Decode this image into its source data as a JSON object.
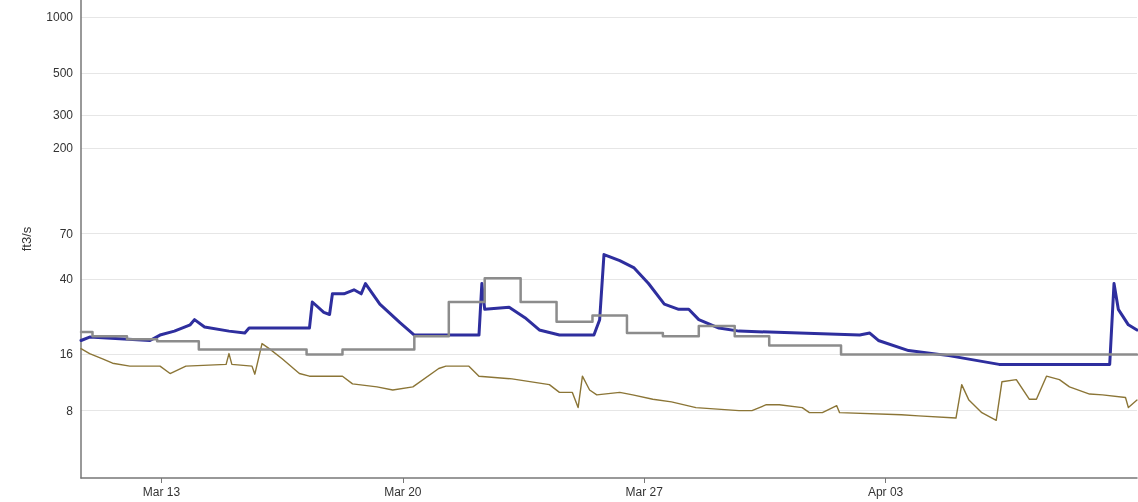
{
  "chart_data": {
    "type": "line",
    "ylabel": "ft3/s",
    "log": "y",
    "grid": "y",
    "marker": "none",
    "line_style": "solid",
    "xlim": [
      "--03-10T16:00",
      "--04-10T07:00"
    ],
    "xticks": [
      {
        "value": "--03-13",
        "label": "Mar 13"
      },
      {
        "value": "--03-20",
        "label": "Mar 20"
      },
      {
        "value": "--03-27",
        "label": "Mar 27"
      },
      {
        "value": "--04-03",
        "label": "Apr 03"
      }
    ],
    "ylim": [
      3.5,
      1230
    ],
    "yticks": [
      8,
      16,
      40,
      70,
      200,
      300,
      500,
      1000
    ],
    "series": [
      {
        "type": "step",
        "color": "#8c8c8c",
        "x": [
          "--03-10T16:00",
          "--03-11T00:00",
          "--03-12T00:00",
          "--03-12T21:00",
          "--03-14T02:00",
          "--03-17T05:00",
          "--03-18T06:00",
          "--03-20T08:00",
          "--03-21T08:00",
          "--03-22T09:00",
          "--03-23T10:00",
          "--03-24T11:00",
          "--03-25T12:00",
          "--03-26T12:00",
          "--03-27T13:00",
          "--03-28T14:00",
          "--03-29T15:00",
          "--03-30T15:00",
          "--04-01T17:00",
          "--04-10T07:00"
        ],
        "values": [
          21.0,
          19.9,
          19.2,
          18.7,
          16.9,
          15.9,
          16.9,
          19.9,
          30.3,
          40.5,
          30.3,
          23.8,
          25.7,
          20.7,
          19.9,
          22.6,
          19.9,
          17.8,
          15.9,
          15.9
        ]
      },
      {
        "color": "#8b7536",
        "x": [
          "--03-10T16:00",
          "--03-10T22:00",
          "--03-11T07:00",
          "--03-11T14:00",
          "--03-12T02:00",
          "--03-12T23:00",
          "--03-13T06:00",
          "--03-13T17:00",
          "--03-14T21:00",
          "--03-14T23:00",
          "--03-15T01:00",
          "--03-15T15:00",
          "--03-15T17:00",
          "--03-15T22:00",
          "--03-16T03:00",
          "--03-16T12:00",
          "--03-17T00:00",
          "--03-17T07:00",
          "--03-18T06:00",
          "--03-18T13:00",
          "--03-19T06:00",
          "--03-19T17:00",
          "--03-20T07:00",
          "--03-21T01:00",
          "--03-21T06:00",
          "--03-21T22:00",
          "--03-22T05:00",
          "--03-23T04:00",
          "--03-24T06:00",
          "--03-24T13:00",
          "--03-24T22:00",
          "--03-25T02:00",
          "--03-25T05:00",
          "--03-25T10:00",
          "--03-25T15:00",
          "--03-26T07:00",
          "--03-26T16:00",
          "--03-27T06:00",
          "--03-27T19:00",
          "--03-28T12:00",
          "--03-29T18:00",
          "--03-30T03:00",
          "--03-30T13:00",
          "--03-30T22:00",
          "--03-31T14:00",
          "--03-31T19:00",
          "--04-01T04:00",
          "--04-01T14:00",
          "--04-01T16:00",
          "--04-03T11:00",
          "--04-03T23:00",
          "--04-05T01:00",
          "--04-05T05:00",
          "--04-05T10:00",
          "--04-05T19:00",
          "--04-06T05:00",
          "--04-06T09:00",
          "--04-06T19:00",
          "--04-07T04:00",
          "--04-07T09:00",
          "--04-07T16:00",
          "--04-08T01:00",
          "--04-08T08:00",
          "--04-08T22:00",
          "--04-09T07:00",
          "--04-09T23:00",
          "--04-10T01:00",
          "--04-10T07:00"
        ],
        "values": [
          17.1,
          16.1,
          15.1,
          14.3,
          13.8,
          13.8,
          12.6,
          13.8,
          14.1,
          16.1,
          14.1,
          13.8,
          12.5,
          18.2,
          17.1,
          15.1,
          12.6,
          12.2,
          12.2,
          11.1,
          10.7,
          10.3,
          10.7,
          13.4,
          13.8,
          13.8,
          12.2,
          11.8,
          11.0,
          10.0,
          10.0,
          8.3,
          12.2,
          10.3,
          9.7,
          10.0,
          9.7,
          9.2,
          8.9,
          8.3,
          8.0,
          8.0,
          8.6,
          8.6,
          8.3,
          7.8,
          7.8,
          8.5,
          7.8,
          7.6,
          7.5,
          7.3,
          11.0,
          9.1,
          7.8,
          7.1,
          11.4,
          11.7,
          9.2,
          9.2,
          12.2,
          11.7,
          10.7,
          9.8,
          9.7,
          9.4,
          8.3,
          9.1
        ]
      },
      {
        "color": "#2e2e9e",
        "x": [
          "--03-10T16:00",
          "--03-10T22:00",
          "--03-12T16:00",
          "--03-12T23:00",
          "--03-13T09:00",
          "--03-13T20:00",
          "--03-13T23:00",
          "--03-14T06:00",
          "--03-14T23:00",
          "--03-15T10:00",
          "--03-15T13:00",
          "--03-17T07:00",
          "--03-17T09:00",
          "--03-17T17:00",
          "--03-17T21:00",
          "--03-17T23:00",
          "--03-18T07:00",
          "--03-18T14:00",
          "--03-18T19:00",
          "--03-18T22:00",
          "--03-19T08:00",
          "--03-19T22:00",
          "--03-20T08:00",
          "--03-22T05:00",
          "--03-22T07:00",
          "--03-22T09:00",
          "--03-23T02:00",
          "--03-23T13:00",
          "--03-23T23:00",
          "--03-24T13:00",
          "--03-25T13:00",
          "--03-25T17:00",
          "--03-25T20:00",
          "--03-26T07:00",
          "--03-26T17:00",
          "--03-27T03:00",
          "--03-27T14:00",
          "--03-28T00:00",
          "--03-28T07:00",
          "--03-28T14:00",
          "--03-29T04:00",
          "--03-29T18:00",
          "--03-31T12:00",
          "--04-02T06:00",
          "--04-02T13:00",
          "--04-02T19:00",
          "--04-03T16:00",
          "--04-04T20:00",
          "--04-06T07:00",
          "--04-07T18:00",
          "--04-09T12:00",
          "--04-09T15:00",
          "--04-09T18:00",
          "--04-10T01:00",
          "--04-10T07:00"
        ],
        "values": [
          18.9,
          19.7,
          18.9,
          20.2,
          21.2,
          22.9,
          24.4,
          22.3,
          21.2,
          20.7,
          22.0,
          22.0,
          30.3,
          26.7,
          26.0,
          33.5,
          33.5,
          35.2,
          33.5,
          38.0,
          29.5,
          23.5,
          20.2,
          20.2,
          38.0,
          27.7,
          28.4,
          25.0,
          21.5,
          20.2,
          20.2,
          24.4,
          54.2,
          50.3,
          46.0,
          38.0,
          29.5,
          27.7,
          27.7,
          24.4,
          22.0,
          21.2,
          20.7,
          20.2,
          20.7,
          18.9,
          16.7,
          15.7,
          14.1,
          14.1,
          14.1,
          38.0,
          27.7,
          22.9,
          21.5
        ]
      }
    ]
  }
}
